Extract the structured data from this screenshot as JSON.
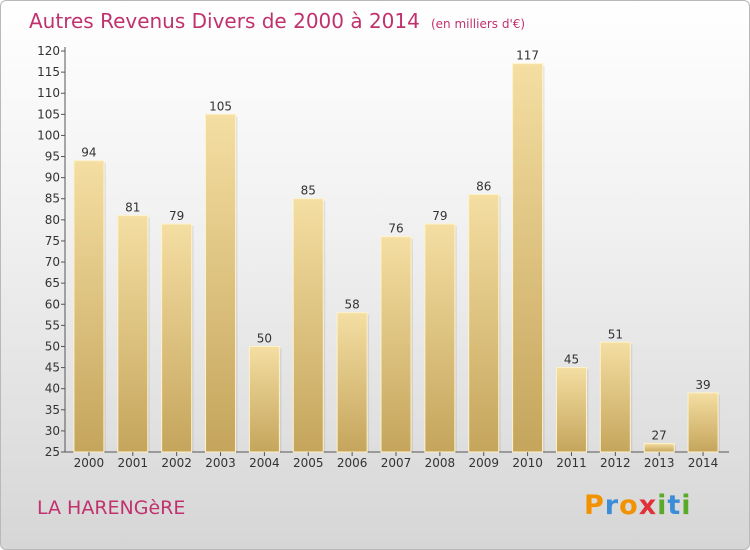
{
  "chart_data": {
    "type": "bar",
    "title": "Autres Revenus Divers de 2000 à 2014",
    "unit_note": "(en milliers d'€)",
    "categories": [
      "2000",
      "2001",
      "2002",
      "2003",
      "2004",
      "2005",
      "2006",
      "2007",
      "2008",
      "2009",
      "2010",
      "2011",
      "2012",
      "2013",
      "2014"
    ],
    "values": [
      94,
      81,
      79,
      105,
      50,
      85,
      58,
      76,
      79,
      86,
      117,
      45,
      51,
      27,
      39
    ],
    "ylim": [
      25,
      120
    ],
    "yticks": [
      25,
      30,
      35,
      40,
      45,
      50,
      55,
      60,
      65,
      70,
      75,
      80,
      85,
      90,
      95,
      100,
      105,
      110,
      115,
      120
    ],
    "xlabel": "",
    "ylabel": "",
    "grid": false,
    "bar_color": "#e6c87e"
  },
  "footer": {
    "commune": "LA HARENGèRE",
    "logo": [
      "P",
      "r",
      "o",
      "x",
      "i",
      "t",
      "i"
    ],
    "logo_colors": [
      "#f39200",
      "#3a8dd6",
      "#f39200",
      "#e0313b",
      "#5aaa2a",
      "#3a8dd6",
      "#5aaa2a"
    ]
  }
}
